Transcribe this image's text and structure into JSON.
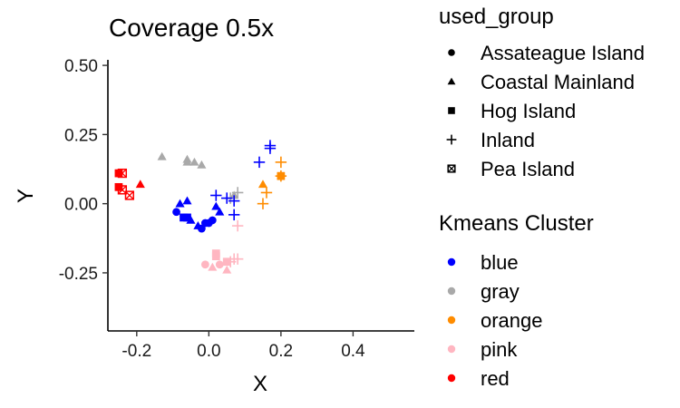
{
  "chart_data": {
    "type": "scatter",
    "title": "Coverage 0.5x",
    "xlabel": "X",
    "ylabel": "Y",
    "xlim": [
      -0.28,
      0.57
    ],
    "ylim": [
      -0.46,
      0.52
    ],
    "x_ticks": [
      "-0.2",
      "0.0",
      "0.2",
      "0.4"
    ],
    "x_tick_values": [
      -0.2,
      0.0,
      0.2,
      0.4
    ],
    "y_ticks": [
      "0.50",
      "0.25",
      "0.00",
      "-0.25"
    ],
    "y_tick_values": [
      0.5,
      0.25,
      0.0,
      -0.25
    ],
    "grid": false,
    "legend_placement": "right",
    "shape_legend": {
      "title": "used_group",
      "items": [
        {
          "label": "Assateague Island",
          "shape": "circle"
        },
        {
          "label": "Coastal Mainland",
          "shape": "triangle"
        },
        {
          "label": "Hog Island",
          "shape": "square"
        },
        {
          "label": "Inland",
          "shape": "plus"
        },
        {
          "label": "Pea Island",
          "shape": "boxed-x"
        }
      ]
    },
    "color_legend": {
      "title": "Kmeans Cluster",
      "items": [
        {
          "label": "blue",
          "color": "#0000FF"
        },
        {
          "label": "gray",
          "color": "#A9A9A9"
        },
        {
          "label": "orange",
          "color": "#FF8C00"
        },
        {
          "label": "pink",
          "color": "#FFB6C1"
        },
        {
          "label": "red",
          "color": "#FF0000"
        }
      ]
    },
    "points": [
      {
        "x": -0.13,
        "y": 0.17,
        "shape": "triangle",
        "cluster": "gray"
      },
      {
        "x": -0.06,
        "y": 0.16,
        "shape": "triangle",
        "cluster": "gray"
      },
      {
        "x": -0.06,
        "y": 0.15,
        "shape": "triangle",
        "cluster": "gray"
      },
      {
        "x": -0.04,
        "y": 0.15,
        "shape": "triangle",
        "cluster": "gray"
      },
      {
        "x": -0.02,
        "y": 0.14,
        "shape": "triangle",
        "cluster": "gray"
      },
      {
        "x": 0.07,
        "y": 0.03,
        "shape": "triangle",
        "cluster": "gray"
      },
      {
        "x": 0.08,
        "y": 0.04,
        "shape": "plus",
        "cluster": "gray"
      },
      {
        "x": 0.06,
        "y": 0.02,
        "shape": "plus",
        "cluster": "gray"
      },
      {
        "x": -0.25,
        "y": 0.11,
        "shape": "square",
        "cluster": "red"
      },
      {
        "x": -0.24,
        "y": 0.11,
        "shape": "boxed-x",
        "cluster": "red"
      },
      {
        "x": -0.25,
        "y": 0.06,
        "shape": "square",
        "cluster": "red"
      },
      {
        "x": -0.24,
        "y": 0.05,
        "shape": "boxed-x",
        "cluster": "red"
      },
      {
        "x": -0.22,
        "y": 0.03,
        "shape": "boxed-x",
        "cluster": "red"
      },
      {
        "x": -0.19,
        "y": 0.07,
        "shape": "triangle",
        "cluster": "red"
      },
      {
        "x": -0.08,
        "y": 0.0,
        "shape": "triangle",
        "cluster": "blue"
      },
      {
        "x": -0.06,
        "y": 0.01,
        "shape": "triangle",
        "cluster": "blue"
      },
      {
        "x": -0.09,
        "y": -0.03,
        "shape": "circle",
        "cluster": "blue"
      },
      {
        "x": -0.07,
        "y": -0.05,
        "shape": "square",
        "cluster": "blue"
      },
      {
        "x": -0.06,
        "y": -0.05,
        "shape": "square",
        "cluster": "blue"
      },
      {
        "x": -0.05,
        "y": -0.06,
        "shape": "triangle",
        "cluster": "blue"
      },
      {
        "x": -0.03,
        "y": -0.08,
        "shape": "triangle",
        "cluster": "blue"
      },
      {
        "x": -0.02,
        "y": -0.09,
        "shape": "circle",
        "cluster": "blue"
      },
      {
        "x": -0.01,
        "y": -0.07,
        "shape": "circle",
        "cluster": "blue"
      },
      {
        "x": 0.0,
        "y": -0.07,
        "shape": "circle",
        "cluster": "blue"
      },
      {
        "x": 0.01,
        "y": -0.06,
        "shape": "circle",
        "cluster": "blue"
      },
      {
        "x": 0.02,
        "y": 0.03,
        "shape": "plus",
        "cluster": "blue"
      },
      {
        "x": 0.02,
        "y": -0.01,
        "shape": "triangle",
        "cluster": "blue"
      },
      {
        "x": 0.03,
        "y": -0.03,
        "shape": "triangle",
        "cluster": "blue"
      },
      {
        "x": 0.05,
        "y": 0.02,
        "shape": "plus",
        "cluster": "blue"
      },
      {
        "x": 0.07,
        "y": 0.01,
        "shape": "plus",
        "cluster": "blue"
      },
      {
        "x": 0.07,
        "y": -0.04,
        "shape": "plus",
        "cluster": "blue"
      },
      {
        "x": 0.14,
        "y": 0.15,
        "shape": "plus",
        "cluster": "blue"
      },
      {
        "x": 0.17,
        "y": 0.21,
        "shape": "plus",
        "cluster": "blue"
      },
      {
        "x": 0.17,
        "y": 0.2,
        "shape": "plus",
        "cluster": "blue"
      },
      {
        "x": 0.15,
        "y": 0.07,
        "shape": "triangle",
        "cluster": "orange"
      },
      {
        "x": 0.16,
        "y": 0.04,
        "shape": "plus",
        "cluster": "orange"
      },
      {
        "x": 0.15,
        "y": 0.0,
        "shape": "plus",
        "cluster": "orange"
      },
      {
        "x": 0.2,
        "y": 0.15,
        "shape": "plus",
        "cluster": "orange"
      },
      {
        "x": 0.2,
        "y": 0.1,
        "shape": "plus",
        "cluster": "orange"
      },
      {
        "x": 0.2,
        "y": 0.1,
        "shape": "square",
        "cluster": "orange"
      },
      {
        "x": 0.08,
        "y": -0.08,
        "shape": "plus",
        "cluster": "pink"
      },
      {
        "x": 0.02,
        "y": -0.18,
        "shape": "square",
        "cluster": "pink"
      },
      {
        "x": 0.02,
        "y": -0.19,
        "shape": "square",
        "cluster": "pink"
      },
      {
        "x": -0.01,
        "y": -0.22,
        "shape": "circle",
        "cluster": "pink"
      },
      {
        "x": 0.01,
        "y": -0.23,
        "shape": "triangle",
        "cluster": "pink"
      },
      {
        "x": 0.03,
        "y": -0.22,
        "shape": "circle",
        "cluster": "pink"
      },
      {
        "x": 0.05,
        "y": -0.24,
        "shape": "triangle",
        "cluster": "pink"
      },
      {
        "x": 0.06,
        "y": -0.21,
        "shape": "plus",
        "cluster": "pink"
      },
      {
        "x": 0.07,
        "y": -0.2,
        "shape": "plus",
        "cluster": "pink"
      },
      {
        "x": 0.08,
        "y": -0.2,
        "shape": "plus",
        "cluster": "pink"
      },
      {
        "x": 0.05,
        "y": -0.21,
        "shape": "square",
        "cluster": "pink"
      }
    ]
  }
}
